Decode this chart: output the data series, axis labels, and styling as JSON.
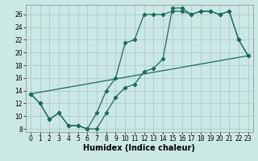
{
  "xlabel": "Humidex (Indice chaleur)",
  "background_color": "#cce8e4",
  "grid_color": "#aacccc",
  "line_color": "#1a6b5e",
  "xlim": [
    -0.5,
    23.5
  ],
  "ylim": [
    7.5,
    27.5
  ],
  "xticks": [
    0,
    1,
    2,
    3,
    4,
    5,
    6,
    7,
    8,
    9,
    10,
    11,
    12,
    13,
    14,
    15,
    16,
    17,
    18,
    19,
    20,
    21,
    22,
    23
  ],
  "yticks": [
    8,
    10,
    12,
    14,
    16,
    18,
    20,
    22,
    24,
    26
  ],
  "line1_x": [
    0,
    1,
    2,
    3,
    4,
    5,
    6,
    7,
    8,
    9,
    10,
    11,
    12,
    13,
    14,
    15,
    16,
    17,
    18,
    19,
    20,
    21,
    22,
    23
  ],
  "line1_y": [
    13.5,
    12.0,
    9.5,
    10.5,
    8.5,
    8.5,
    8.0,
    8.0,
    10.5,
    13.0,
    14.5,
    15.0,
    17.0,
    17.5,
    19.0,
    27.0,
    27.0,
    26.0,
    26.5,
    26.5,
    26.0,
    26.5,
    22.0,
    19.5
  ],
  "line2_x": [
    0,
    1,
    2,
    3,
    4,
    5,
    6,
    7,
    8,
    9,
    10,
    11,
    12,
    13,
    14,
    15,
    16,
    17,
    18,
    19,
    20,
    21,
    22,
    23
  ],
  "line2_y": [
    13.5,
    12.0,
    9.5,
    10.5,
    8.5,
    8.5,
    8.0,
    10.5,
    14.0,
    16.0,
    21.5,
    22.0,
    26.0,
    26.0,
    26.0,
    26.5,
    26.5,
    26.0,
    26.5,
    26.5,
    26.0,
    26.5,
    22.0,
    19.5
  ],
  "line3_x": [
    0,
    23
  ],
  "line3_y": [
    13.5,
    19.5
  ],
  "marker_x1": [
    0,
    1,
    2,
    3,
    4,
    5,
    6,
    7,
    8,
    9,
    10,
    11,
    12,
    13,
    14,
    15,
    16,
    17,
    18,
    19,
    20,
    21,
    22,
    23
  ],
  "marker_y1": [
    13.5,
    12.0,
    9.5,
    10.5,
    8.5,
    8.5,
    8.0,
    8.0,
    10.5,
    13.0,
    14.5,
    15.0,
    17.0,
    17.5,
    19.0,
    27.0,
    27.0,
    26.0,
    26.5,
    26.5,
    26.0,
    26.5,
    22.0,
    19.5
  ],
  "marker_x2": [
    0,
    1,
    2,
    3,
    4,
    5,
    6,
    7,
    8,
    9,
    10,
    11,
    12,
    13,
    14,
    15,
    16,
    17,
    18,
    19,
    20,
    21,
    22,
    23
  ],
  "marker_y2": [
    13.5,
    12.0,
    9.5,
    10.5,
    8.5,
    8.5,
    8.0,
    10.5,
    14.0,
    16.0,
    21.5,
    22.0,
    26.0,
    26.0,
    26.0,
    26.5,
    26.5,
    26.0,
    26.5,
    26.5,
    26.0,
    26.5,
    22.0,
    19.5
  ],
  "xlabel_fontsize": 7,
  "tick_fontsize": 5.5,
  "linewidth": 0.9,
  "markersize": 2.2
}
